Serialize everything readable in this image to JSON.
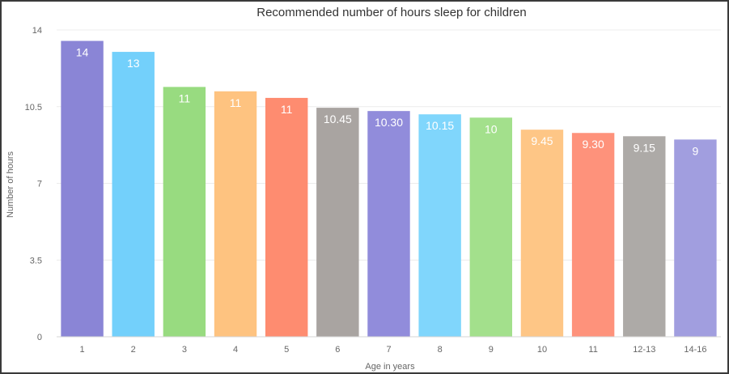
{
  "chart_data": {
    "type": "bar",
    "title": "Recommended number of hours sleep for children",
    "xlabel": "Age in years",
    "ylabel": "Number of hours",
    "categories": [
      "1",
      "2",
      "3",
      "4",
      "5",
      "6",
      "7",
      "8",
      "9",
      "10",
      "11",
      "12-13",
      "14-16"
    ],
    "values": [
      13.5,
      13,
      11.4,
      11.2,
      10.9,
      10.45,
      10.3,
      10.15,
      10,
      9.45,
      9.3,
      9.15,
      9
    ],
    "value_labels": [
      "14",
      "13",
      "11",
      "11",
      "11",
      "10.45",
      "10.30",
      "10.15",
      "10",
      "9.45",
      "9.30",
      "9.15",
      "9"
    ],
    "ylim": [
      0,
      14
    ],
    "yticks": [
      "0",
      "3.5",
      "7",
      "10.5",
      "14"
    ],
    "colors": [
      "#8a85d6",
      "#73d0fb",
      "#98db80",
      "#fec380",
      "#fe8c70",
      "#a9a4a1",
      "#918cdb",
      "#80d6fc",
      "#a3e08c",
      "#fec686",
      "#fe927b",
      "#adaaa7",
      "#a19edf"
    ],
    "grid": true,
    "legend": "none"
  }
}
